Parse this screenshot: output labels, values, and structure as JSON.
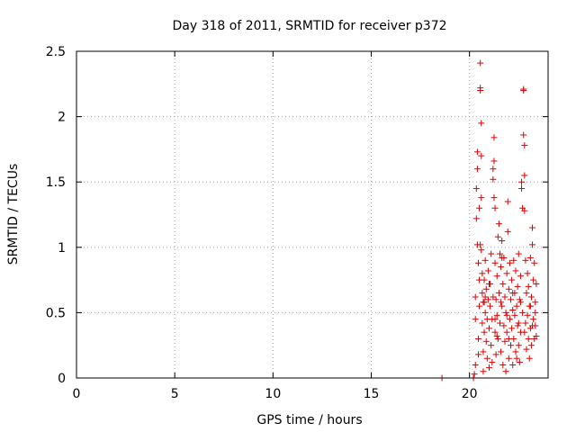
{
  "chart_data": {
    "type": "scatter",
    "title": "Day 318 of 2011, SRMTID for receiver p372",
    "xlabel": "GPS time / hours",
    "ylabel": "SRMTID / TECUs",
    "xlim": [
      0,
      24
    ],
    "ylim": [
      0,
      2.5
    ],
    "xticks": [
      0,
      5,
      10,
      15,
      20
    ],
    "xtick_labels": [
      "0",
      "5",
      "10",
      "15",
      "20"
    ],
    "yticks": [
      0,
      0.5,
      1,
      1.5,
      2,
      2.5
    ],
    "ytick_labels": [
      "0",
      "0.5",
      "1",
      "1.5",
      "2",
      "2.5"
    ],
    "grid": true,
    "marker": "+",
    "color": "#e00000",
    "series": [
      {
        "name": "SRMTID",
        "points": [
          [
            18.6,
            0.0
          ],
          [
            20.2,
            0.0
          ],
          [
            20.25,
            0.03
          ],
          [
            20.3,
            0.1
          ],
          [
            20.3,
            0.45
          ],
          [
            20.3,
            0.62
          ],
          [
            20.35,
            1.22
          ],
          [
            20.35,
            1.45
          ],
          [
            20.4,
            1.6
          ],
          [
            20.4,
            1.73
          ],
          [
            20.4,
            1.02
          ],
          [
            20.45,
            0.88
          ],
          [
            20.45,
            0.3
          ],
          [
            20.5,
            0.75
          ],
          [
            20.5,
            0.55
          ],
          [
            20.5,
            1.3
          ],
          [
            20.55,
            2.41
          ],
          [
            20.55,
            2.22
          ],
          [
            20.55,
            2.2
          ],
          [
            20.6,
            1.95
          ],
          [
            20.6,
            1.7
          ],
          [
            20.6,
            1.38
          ],
          [
            20.6,
            0.98
          ],
          [
            20.65,
            0.8
          ],
          [
            20.65,
            0.65
          ],
          [
            20.65,
            0.42
          ],
          [
            20.7,
            0.2
          ],
          [
            20.7,
            0.05
          ],
          [
            20.75,
            0.35
          ],
          [
            20.75,
            0.58
          ],
          [
            20.75,
            0.75
          ],
          [
            20.8,
            0.9
          ],
          [
            20.8,
            0.5
          ],
          [
            20.85,
            0.28
          ],
          [
            20.85,
            0.68
          ],
          [
            20.9,
            0.45
          ],
          [
            20.9,
            0.15
          ],
          [
            20.95,
            0.82
          ],
          [
            20.95,
            0.6
          ],
          [
            21.0,
            0.38
          ],
          [
            21.0,
            0.08
          ],
          [
            21.05,
            0.55
          ],
          [
            21.05,
            0.72
          ],
          [
            21.1,
            0.25
          ],
          [
            21.1,
            0.95
          ],
          [
            21.15,
            0.12
          ],
          [
            21.15,
            0.45
          ],
          [
            21.2,
            1.6
          ],
          [
            21.2,
            1.52
          ],
          [
            21.2,
            0.62
          ],
          [
            21.25,
            1.84
          ],
          [
            21.25,
            1.66
          ],
          [
            21.25,
            1.38
          ],
          [
            21.3,
            1.3
          ],
          [
            21.3,
            0.88
          ],
          [
            21.3,
            0.35
          ],
          [
            21.35,
            0.18
          ],
          [
            21.35,
            0.6
          ],
          [
            21.4,
            0.78
          ],
          [
            21.4,
            0.48
          ],
          [
            21.45,
            1.08
          ],
          [
            21.45,
            0.3
          ],
          [
            21.5,
            1.18
          ],
          [
            21.5,
            0.65
          ],
          [
            21.55,
            0.95
          ],
          [
            21.55,
            0.42
          ],
          [
            21.6,
            0.2
          ],
          [
            21.6,
            0.85
          ],
          [
            21.65,
            1.05
          ],
          [
            21.65,
            0.55
          ],
          [
            21.7,
            0.72
          ],
          [
            21.7,
            0.1
          ],
          [
            21.75,
            0.4
          ],
          [
            21.75,
            0.92
          ],
          [
            21.8,
            0.62
          ],
          [
            21.8,
            0.28
          ],
          [
            21.85,
            0.5
          ],
          [
            21.85,
            0.05
          ],
          [
            21.9,
            0.8
          ],
          [
            21.9,
            0.35
          ],
          [
            21.95,
            1.35
          ],
          [
            21.95,
            1.12
          ],
          [
            22.0,
            0.68
          ],
          [
            22.0,
            0.15
          ],
          [
            22.05,
            0.45
          ],
          [
            22.05,
            0.88
          ],
          [
            22.1,
            0.25
          ],
          [
            22.1,
            0.6
          ],
          [
            22.15,
            0.75
          ],
          [
            22.15,
            0.38
          ],
          [
            22.2,
            0.52
          ],
          [
            22.2,
            0.1
          ],
          [
            22.25,
            0.9
          ],
          [
            22.25,
            0.3
          ],
          [
            22.3,
            0.65
          ],
          [
            22.3,
            0.48
          ],
          [
            22.35,
            0.2
          ],
          [
            22.35,
            0.82
          ],
          [
            22.4,
            0.55
          ],
          [
            22.4,
            0.15
          ],
          [
            22.45,
            0.7
          ],
          [
            22.45,
            0.4
          ],
          [
            22.5,
            0.95
          ],
          [
            22.5,
            0.25
          ],
          [
            22.55,
            0.6
          ],
          [
            22.55,
            0.12
          ],
          [
            22.6,
            0.78
          ],
          [
            22.6,
            0.35
          ],
          [
            22.65,
            1.5
          ],
          [
            22.65,
            1.45
          ],
          [
            22.7,
            1.3
          ],
          [
            22.7,
            0.5
          ],
          [
            22.75,
            2.21
          ],
          [
            22.75,
            2.2
          ],
          [
            22.75,
            1.86
          ],
          [
            22.8,
            1.78
          ],
          [
            22.8,
            1.55
          ],
          [
            22.8,
            1.28
          ],
          [
            22.85,
            0.9
          ],
          [
            22.85,
            0.42
          ],
          [
            22.9,
            0.65
          ],
          [
            22.9,
            0.22
          ],
          [
            22.95,
            0.8
          ],
          [
            22.95,
            0.48
          ],
          [
            23.0,
            0.3
          ],
          [
            23.0,
            0.7
          ],
          [
            23.05,
            0.55
          ],
          [
            23.05,
            0.15
          ],
          [
            23.1,
            0.92
          ],
          [
            23.1,
            0.38
          ],
          [
            23.15,
            0.62
          ],
          [
            23.15,
            0.25
          ],
          [
            23.2,
            1.15
          ],
          [
            23.2,
            1.02
          ],
          [
            23.25,
            0.75
          ],
          [
            23.25,
            0.45
          ],
          [
            23.3,
            0.3
          ],
          [
            23.3,
            0.88
          ],
          [
            23.35,
            0.58
          ],
          [
            23.35,
            0.4
          ],
          [
            23.4,
            0.72
          ],
          [
            23.4,
            0.32
          ],
          [
            20.45,
            0.18
          ],
          [
            20.8,
            0.62
          ],
          [
            21.0,
            0.72
          ],
          [
            21.3,
            0.45
          ],
          [
            21.6,
            0.58
          ],
          [
            21.9,
            0.48
          ],
          [
            22.2,
            0.65
          ],
          [
            22.5,
            0.42
          ],
          [
            22.8,
            0.35
          ],
          [
            23.1,
            0.55
          ],
          [
            23.35,
            0.5
          ],
          [
            20.7,
            0.58
          ],
          [
            21.4,
            0.32
          ],
          [
            22.0,
            0.3
          ],
          [
            22.6,
            0.58
          ],
          [
            23.2,
            0.4
          ],
          [
            20.55,
            1.02
          ],
          [
            21.65,
            0.92
          ]
        ]
      }
    ]
  }
}
